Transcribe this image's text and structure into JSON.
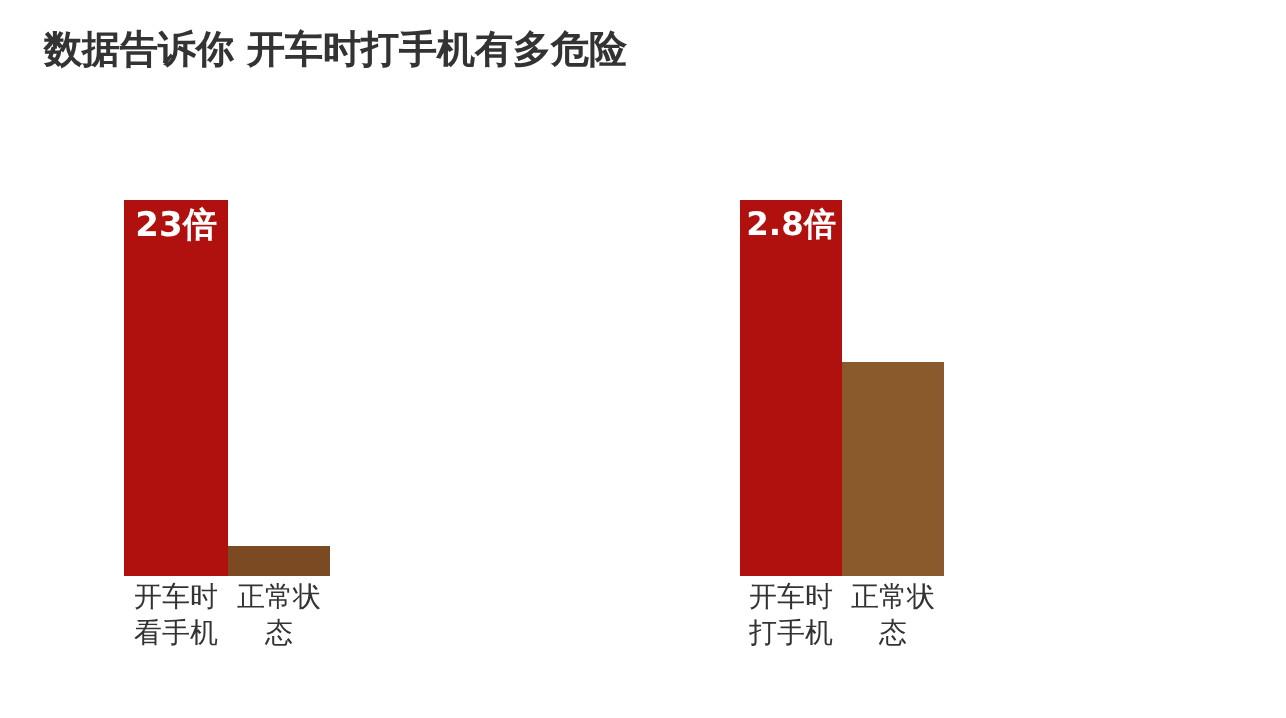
{
  "chart_data": [
    {
      "type": "bar",
      "title": "数据告诉你 开车时打手机有多危险",
      "categories": [
        "开车时看手机",
        "正常状态"
      ],
      "series": [
        {
          "colors": [
            "#b0100e",
            "#7b4a22"
          ],
          "values": [
            23,
            1.8
          ],
          "value_labels": [
            "23倍",
            null
          ]
        }
      ]
    },
    {
      "type": "bar",
      "categories": [
        "开车时打手机",
        "正常状态"
      ],
      "series": [
        {
          "colors": [
            "#b0100e",
            "#8a5a2c"
          ],
          "values": [
            2.8,
            1.6
          ],
          "value_labels": [
            "2.8倍",
            null
          ]
        }
      ]
    }
  ]
}
